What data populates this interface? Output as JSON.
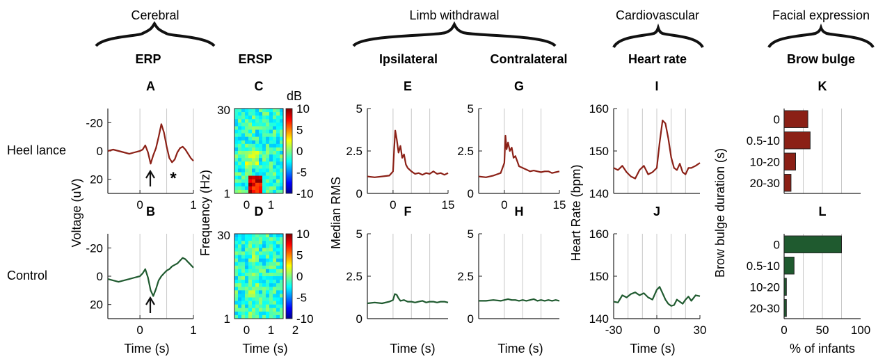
{
  "groups": [
    {
      "label": "Cerebral"
    },
    {
      "label": "Limb withdrawal"
    },
    {
      "label": "Cardiovascular"
    },
    {
      "label": "Facial expression"
    }
  ],
  "subgroups": [
    {
      "label": "ERP"
    },
    {
      "label": "ERSP"
    },
    {
      "label": "Ipsilateral"
    },
    {
      "label": "Contralateral"
    },
    {
      "label": "Heart rate"
    },
    {
      "label": "Brow bulge"
    }
  ],
  "rows": [
    {
      "label": "Heel lance"
    },
    {
      "label": "Control"
    }
  ],
  "axis_labels": {
    "erp_y": "Voltage (uV)",
    "ersp_y": "Frequency (Hz)",
    "ersp_colorbar": "dB",
    "rms_y": "Median RMS",
    "hr_y": "Heart Rate (bpm)",
    "brow_y": "Brow bulge duration (s)",
    "erp_x": "Time (s)",
    "ersp_x": "Time (s)",
    "ipsi_x": "Time (s)",
    "contra_x": "Time (s)",
    "hr_x": "Time (s)",
    "brow_x": "% of infants"
  },
  "annotations": {
    "asterisk": "*"
  },
  "colors": {
    "heel_lance": "#8b2016",
    "control": "#1f5a2f",
    "grid": "#c8c8c8",
    "axis": "#222222"
  },
  "chart_data": [
    {
      "panel": "A",
      "type": "line",
      "title": "A",
      "xlim": [
        -0.6,
        1
      ],
      "ylim": [
        -30,
        30
      ],
      "y_reversed": true,
      "xticks": [
        "0",
        "1"
      ],
      "yticks": [
        "-20",
        "0",
        "20"
      ],
      "series": [
        {
          "x": [
            -0.6,
            -0.5,
            -0.4,
            -0.3,
            -0.2,
            -0.1,
            0,
            0.05,
            0.1,
            0.15,
            0.2,
            0.25,
            0.3,
            0.35,
            0.4,
            0.45,
            0.5,
            0.55,
            0.6,
            0.65,
            0.7,
            0.75,
            0.8,
            0.85,
            0.9,
            0.95,
            1.0
          ],
          "y": [
            0,
            -1,
            0,
            1,
            2,
            1,
            0,
            -1,
            -4,
            1,
            9,
            3,
            -2,
            -10,
            -19,
            -13,
            -3,
            5,
            8,
            6,
            1,
            -2,
            -3,
            -1,
            2,
            5,
            7
          ]
        }
      ]
    },
    {
      "panel": "B",
      "type": "line",
      "title": "B",
      "xlim": [
        -0.6,
        1
      ],
      "ylim": [
        -30,
        30
      ],
      "y_reversed": true,
      "xticks": [
        "0",
        "1"
      ],
      "yticks": [
        "-20",
        "0",
        "20"
      ],
      "series": [
        {
          "x": [
            -0.6,
            -0.5,
            -0.4,
            -0.3,
            -0.2,
            -0.1,
            0,
            0.05,
            0.1,
            0.15,
            0.2,
            0.25,
            0.3,
            0.35,
            0.4,
            0.45,
            0.5,
            0.55,
            0.6,
            0.65,
            0.7,
            0.75,
            0.8,
            0.85,
            0.9,
            0.95,
            1.0
          ],
          "y": [
            2,
            3,
            4,
            3,
            2,
            1,
            0,
            -2,
            -5,
            1,
            10,
            14,
            9,
            3,
            0,
            -2,
            -4,
            -5,
            -7,
            -8,
            -9,
            -11,
            -13,
            -12,
            -10,
            -8,
            -6
          ]
        }
      ]
    },
    {
      "panel": "C",
      "type": "heatmap",
      "title": "C",
      "xlim": [
        -0.5,
        1.5
      ],
      "ylim": [
        1,
        30
      ],
      "clim": [
        -10,
        10
      ],
      "xticks": [
        "0",
        "1"
      ],
      "yticks": [
        "1",
        "30"
      ],
      "cticks": [
        "10",
        "5",
        "0",
        "-5",
        "-10"
      ]
    },
    {
      "panel": "D",
      "type": "heatmap",
      "title": "D",
      "xlim": [
        -0.5,
        1.5
      ],
      "ylim": [
        1,
        30
      ],
      "clim": [
        -10,
        10
      ],
      "xticks": [
        "0",
        "1",
        "2"
      ],
      "yticks": [
        "1",
        "30"
      ],
      "cticks": [
        "10",
        "5",
        "0",
        "-5",
        "-10"
      ]
    },
    {
      "panel": "E",
      "type": "line",
      "title": "E",
      "xlim": [
        -7,
        15
      ],
      "ylim": [
        0,
        5
      ],
      "xticks": [
        "0",
        "15"
      ],
      "yticks": [
        "0",
        "2.5",
        "5"
      ],
      "series": [
        {
          "x": [
            -7,
            -5,
            -3,
            -1,
            0,
            0.3,
            0.6,
            1,
            1.5,
            2,
            2.5,
            3,
            3.5,
            4,
            5,
            6,
            7,
            8,
            9,
            10,
            11,
            12,
            13,
            14,
            15
          ],
          "y": [
            1.0,
            0.95,
            1.0,
            1.05,
            1.3,
            2.6,
            3.7,
            3.2,
            2.4,
            2.8,
            2.1,
            2.3,
            1.7,
            1.5,
            1.3,
            1.15,
            1.2,
            1.1,
            1.2,
            1.15,
            1.3,
            1.15,
            1.2,
            1.1,
            1.2
          ]
        }
      ]
    },
    {
      "panel": "F",
      "type": "line",
      "title": "F",
      "xlim": [
        -7,
        15
      ],
      "ylim": [
        0,
        5
      ],
      "xticks": [],
      "yticks": [
        "0",
        "2.5",
        "5"
      ],
      "series": [
        {
          "x": [
            -7,
            -5,
            -3,
            -1,
            0,
            0.5,
            1,
            1.5,
            2,
            3,
            4,
            5,
            6,
            7,
            8,
            9,
            10,
            11,
            12,
            13,
            14,
            15
          ],
          "y": [
            0.9,
            0.95,
            0.9,
            1.0,
            1.1,
            1.45,
            1.4,
            1.2,
            1.05,
            1.1,
            1.0,
            1.0,
            0.95,
            1.0,
            1.05,
            0.95,
            1.0,
            1.0,
            0.95,
            1.0,
            1.0,
            0.95
          ]
        }
      ]
    },
    {
      "panel": "G",
      "type": "line",
      "title": "G",
      "xlim": [
        -7,
        15
      ],
      "ylim": [
        0,
        5
      ],
      "xticks": [
        "0",
        "15"
      ],
      "yticks": [
        "0",
        "2.5",
        "5"
      ],
      "series": [
        {
          "x": [
            -7,
            -5,
            -3,
            -1,
            0,
            0.3,
            0.6,
            1,
            1.5,
            2,
            2.5,
            3,
            3.5,
            4,
            5,
            6,
            7,
            8,
            9,
            10,
            11,
            12,
            13,
            14,
            15
          ],
          "y": [
            1.0,
            0.95,
            1.05,
            1.2,
            1.8,
            3.4,
            2.6,
            3.0,
            2.5,
            2.7,
            2.1,
            2.2,
            1.9,
            1.6,
            1.5,
            1.4,
            1.3,
            1.35,
            1.3,
            1.25,
            1.3,
            1.3,
            1.2,
            1.25,
            1.3
          ]
        }
      ]
    },
    {
      "panel": "H",
      "type": "line",
      "title": "H",
      "xlim": [
        -7,
        15
      ],
      "ylim": [
        0,
        5
      ],
      "xticks": [],
      "yticks": [
        "0",
        "2.5",
        "5"
      ],
      "series": [
        {
          "x": [
            -7,
            -5,
            -3,
            -1,
            0,
            1,
            2,
            3,
            4,
            5,
            6,
            7,
            8,
            9,
            10,
            11,
            12,
            13,
            14,
            15
          ],
          "y": [
            1.05,
            1.05,
            1.1,
            1.05,
            1.1,
            1.15,
            1.1,
            1.1,
            1.05,
            1.1,
            1.05,
            1.1,
            1.15,
            1.05,
            1.1,
            1.05,
            1.1,
            1.05,
            1.1,
            1.05
          ]
        }
      ]
    },
    {
      "panel": "I",
      "type": "line",
      "title": "I",
      "xlim": [
        -30,
        30
      ],
      "ylim": [
        140,
        160
      ],
      "xticks": [],
      "yticks": [
        "140",
        "150",
        "160"
      ],
      "series": [
        {
          "x": [
            -30,
            -27,
            -24,
            -21,
            -18,
            -15,
            -12,
            -9,
            -6,
            -3,
            0,
            2,
            4,
            6,
            8,
            10,
            12,
            14,
            16,
            18,
            20,
            22,
            24,
            27,
            30
          ],
          "y": [
            146,
            145.5,
            146.5,
            145,
            144,
            143.5,
            145.5,
            146.5,
            144.5,
            145,
            146,
            152,
            157.2,
            156.5,
            153,
            148.5,
            146,
            145.5,
            147,
            145,
            144.5,
            146,
            146,
            146.5,
            147.2
          ]
        }
      ]
    },
    {
      "panel": "J",
      "type": "line",
      "title": "J",
      "xlim": [
        -30,
        30
      ],
      "ylim": [
        140,
        160
      ],
      "xticks": [
        "-30",
        "0",
        "30"
      ],
      "yticks": [
        "140",
        "150",
        "160"
      ],
      "series": [
        {
          "x": [
            -30,
            -27,
            -24,
            -21,
            -18,
            -15,
            -12,
            -9,
            -6,
            -3,
            0,
            2,
            4,
            6,
            8,
            10,
            12,
            14,
            16,
            18,
            20,
            22,
            24,
            27,
            30
          ],
          "y": [
            144,
            143.8,
            145.5,
            145,
            145.8,
            146.2,
            145.5,
            146,
            145,
            144.5,
            146.8,
            147.5,
            146,
            144.5,
            143.5,
            143,
            143.2,
            144.5,
            144,
            143.5,
            144.5,
            145.2,
            144.2,
            145.5,
            145.3
          ]
        }
      ]
    },
    {
      "panel": "K",
      "type": "bar",
      "orientation": "horizontal",
      "title": "K",
      "categories": [
        "0",
        "0.5-10",
        "10-20",
        "20-30"
      ],
      "values": [
        31,
        34,
        15,
        9
      ],
      "xlim": [
        0,
        100
      ],
      "xticks": []
    },
    {
      "panel": "L",
      "type": "bar",
      "orientation": "horizontal",
      "title": "L",
      "categories": [
        "0",
        "0.5-10",
        "10-20",
        "20-30"
      ],
      "values": [
        75,
        13,
        3,
        3
      ],
      "xlim": [
        0,
        100
      ],
      "xticks": [
        "0",
        "50",
        "100"
      ]
    }
  ]
}
